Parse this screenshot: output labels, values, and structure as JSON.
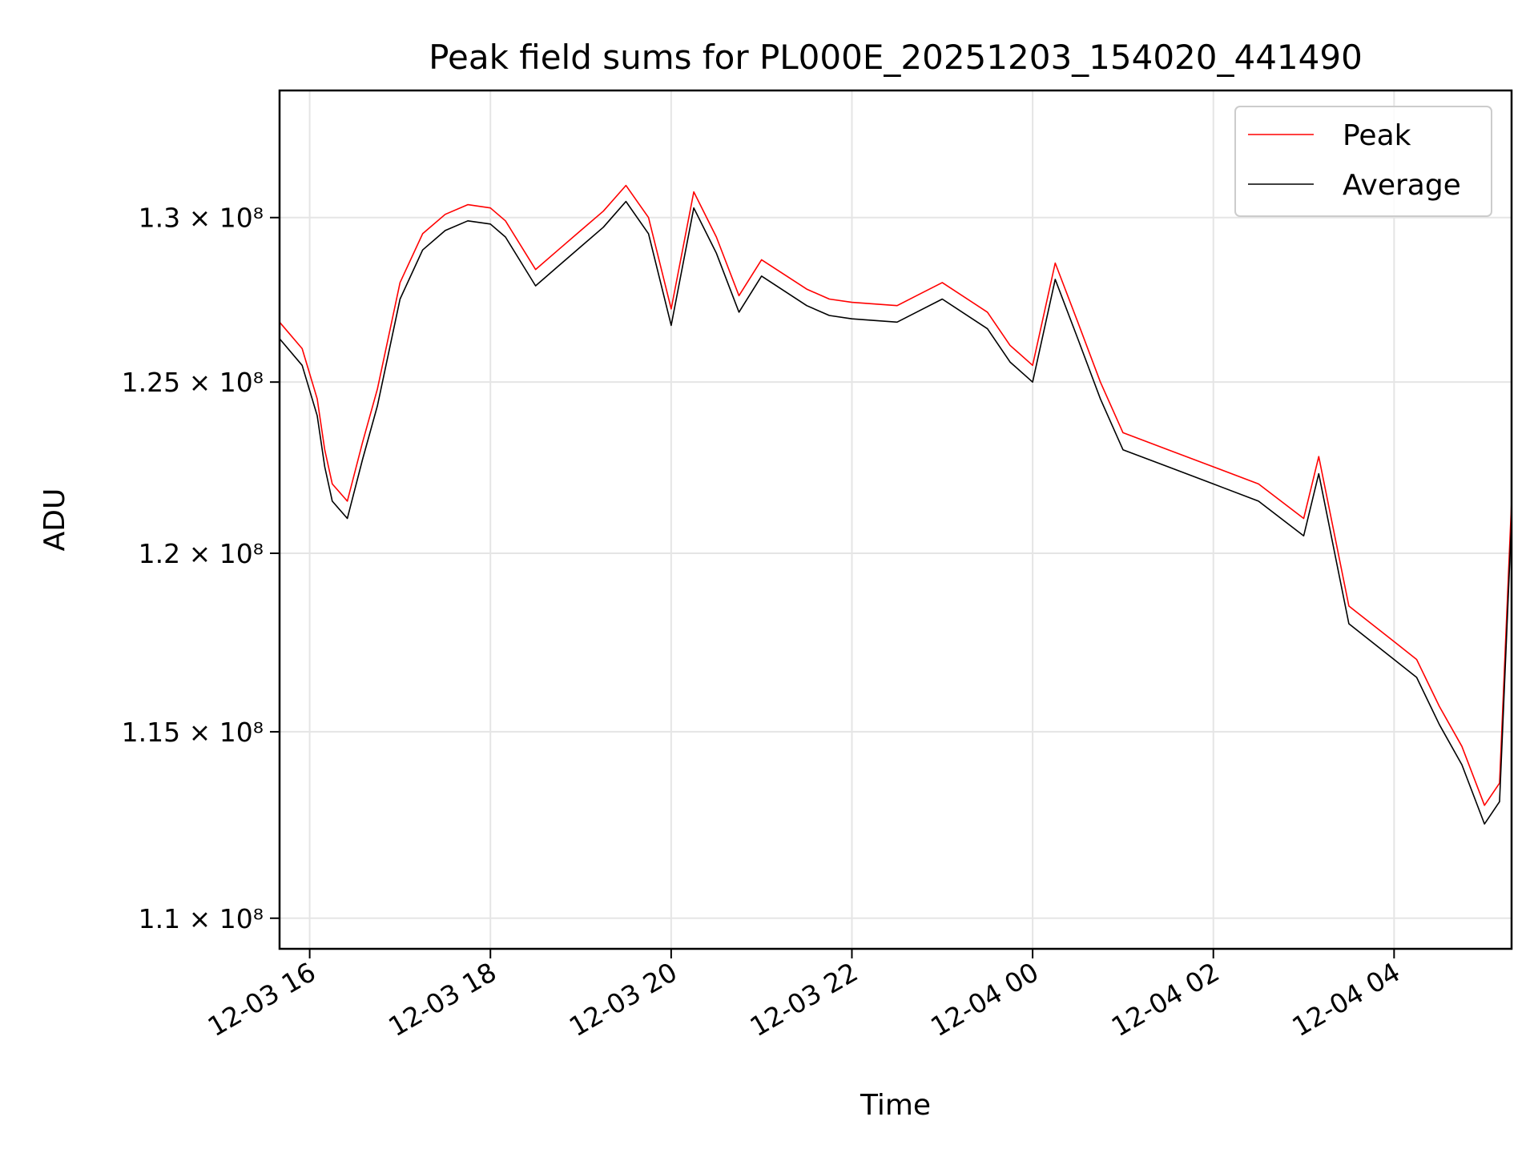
{
  "chart_data": {
    "type": "line",
    "title": "Peak field sums for PL000E_20251203_154020_441490",
    "xlabel": "Time",
    "ylabel": "ADU",
    "x_range": [
      "2025-12-03 15:40",
      "2025-12-04 05:18"
    ],
    "ylim": [
      109200000,
      134000000
    ],
    "y_scale": "log",
    "grid": true,
    "legend": "top-right",
    "x_ticks": [
      {
        "t": "2025-12-03 16:00",
        "label": "12-03 16"
      },
      {
        "t": "2025-12-03 18:00",
        "label": "12-03 18"
      },
      {
        "t": "2025-12-03 20:00",
        "label": "12-03 20"
      },
      {
        "t": "2025-12-03 22:00",
        "label": "12-03 22"
      },
      {
        "t": "2025-12-04 00:00",
        "label": "12-04 00"
      },
      {
        "t": "2025-12-04 02:00",
        "label": "12-04 02"
      },
      {
        "t": "2025-12-04 04:00",
        "label": "12-04 04"
      }
    ],
    "y_ticks": [
      {
        "v": 110000000,
        "label": "1.1 × 10⁸"
      },
      {
        "v": 115000000,
        "label": "1.15 × 10⁸"
      },
      {
        "v": 120000000,
        "label": "1.2 × 10⁸"
      },
      {
        "v": 125000000,
        "label": "1.25 × 10⁸"
      },
      {
        "v": 130000000,
        "label": "1.3 × 10⁸"
      }
    ],
    "x": [
      "2025-12-03 15:40",
      "2025-12-03 15:55",
      "2025-12-03 16:05",
      "2025-12-03 16:10",
      "2025-12-03 16:15",
      "2025-12-03 16:25",
      "2025-12-03 16:35",
      "2025-12-03 16:45",
      "2025-12-03 17:00",
      "2025-12-03 17:15",
      "2025-12-03 17:30",
      "2025-12-03 17:45",
      "2025-12-03 18:00",
      "2025-12-03 18:10",
      "2025-12-03 18:30",
      "2025-12-03 18:45",
      "2025-12-03 19:00",
      "2025-12-03 19:15",
      "2025-12-03 19:30",
      "2025-12-03 19:45",
      "2025-12-03 20:00",
      "2025-12-03 20:15",
      "2025-12-03 20:30",
      "2025-12-03 20:45",
      "2025-12-03 21:00",
      "2025-12-03 21:30",
      "2025-12-03 21:45",
      "2025-12-03 22:00",
      "2025-12-03 22:30",
      "2025-12-03 23:00",
      "2025-12-03 23:30",
      "2025-12-03 23:45",
      "2025-12-04 00:00",
      "2025-12-04 00:15",
      "2025-12-04 00:30",
      "2025-12-04 00:45",
      "2025-12-04 01:00",
      "2025-12-04 01:30",
      "2025-12-04 02:00",
      "2025-12-04 02:30",
      "2025-12-04 03:00",
      "2025-12-04 03:10",
      "2025-12-04 03:30",
      "2025-12-04 04:00",
      "2025-12-04 04:15",
      "2025-12-04 04:30",
      "2025-12-04 04:45",
      "2025-12-04 05:00",
      "2025-12-04 05:10",
      "2025-12-04 05:18"
    ],
    "series": [
      {
        "name": "Peak",
        "color": "#ff0000",
        "values": [
          126800000,
          126000000,
          124500000,
          123000000,
          122000000,
          121500000,
          123200000,
          124800000,
          128000000,
          129500000,
          130100000,
          130400000,
          130300000,
          129900000,
          128400000,
          129000000,
          129600000,
          130200000,
          131000000,
          130000000,
          127200000,
          130800000,
          129400000,
          127600000,
          128700000,
          127800000,
          127500000,
          127400000,
          127300000,
          128000000,
          127100000,
          126100000,
          125500000,
          128600000,
          126800000,
          125000000,
          123500000,
          123000000,
          122500000,
          122000000,
          121000000,
          122800000,
          118500000,
          117500000,
          117000000,
          115700000,
          114600000,
          113000000,
          113600000,
          121500000
        ]
      },
      {
        "name": "Average",
        "color": "#000000",
        "values": [
          126300000,
          125500000,
          124000000,
          122500000,
          121500000,
          121000000,
          122700000,
          124300000,
          127500000,
          129000000,
          129600000,
          129900000,
          129800000,
          129400000,
          127900000,
          128500000,
          129100000,
          129700000,
          130500000,
          129500000,
          126700000,
          130300000,
          128900000,
          127100000,
          128200000,
          127300000,
          127000000,
          126900000,
          126800000,
          127500000,
          126600000,
          125600000,
          125000000,
          128100000,
          126300000,
          124500000,
          123000000,
          122500000,
          122000000,
          121500000,
          120500000,
          122300000,
          118000000,
          117000000,
          116500000,
          115200000,
          114100000,
          112500000,
          113100000,
          121000000
        ]
      }
    ]
  }
}
